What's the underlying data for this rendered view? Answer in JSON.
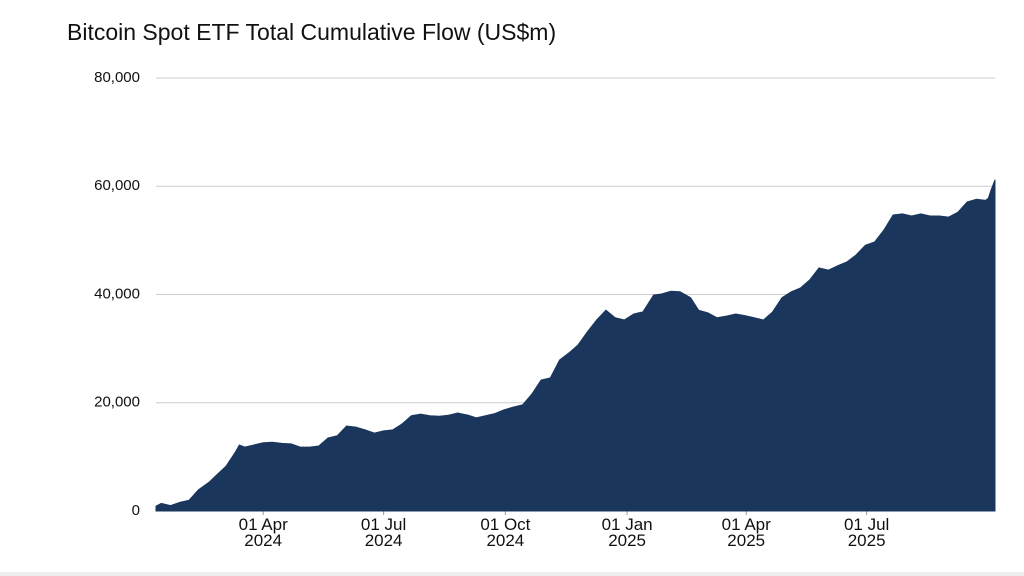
{
  "chart_data": {
    "type": "area",
    "title": "Bitcoin Spot ETF Total Cumulative Flow (US$m)",
    "color": "#1b365d",
    "grid": true,
    "x": [
      "2024-01-11",
      "2024-01-15",
      "2024-01-22",
      "2024-01-29",
      "2024-02-05",
      "2024-02-12",
      "2024-02-20",
      "2024-02-26",
      "2024-03-04",
      "2024-03-11",
      "2024-03-14",
      "2024-03-18",
      "2024-03-25",
      "2024-04-01",
      "2024-04-08",
      "2024-04-15",
      "2024-04-22",
      "2024-04-29",
      "2024-05-06",
      "2024-05-13",
      "2024-05-20",
      "2024-05-27",
      "2024-06-03",
      "2024-06-10",
      "2024-06-17",
      "2024-06-24",
      "2024-07-01",
      "2024-07-08",
      "2024-07-15",
      "2024-07-22",
      "2024-07-29",
      "2024-08-05",
      "2024-08-12",
      "2024-08-19",
      "2024-08-26",
      "2024-09-03",
      "2024-09-09",
      "2024-09-16",
      "2024-09-23",
      "2024-09-30",
      "2024-10-07",
      "2024-10-14",
      "2024-10-21",
      "2024-10-28",
      "2024-11-04",
      "2024-11-11",
      "2024-11-18",
      "2024-11-25",
      "2024-12-02",
      "2024-12-09",
      "2024-12-16",
      "2024-12-23",
      "2024-12-30",
      "2025-01-06",
      "2025-01-13",
      "2025-01-21",
      "2025-01-27",
      "2025-02-03",
      "2025-02-10",
      "2025-02-18",
      "2025-02-24",
      "2025-03-03",
      "2025-03-10",
      "2025-03-17",
      "2025-03-24",
      "2025-03-31",
      "2025-04-07",
      "2025-04-14",
      "2025-04-21",
      "2025-04-28",
      "2025-05-05",
      "2025-05-12",
      "2025-05-19",
      "2025-05-26",
      "2025-06-02",
      "2025-06-09",
      "2025-06-16",
      "2025-06-23",
      "2025-06-30",
      "2025-07-07",
      "2025-07-14",
      "2025-07-21",
      "2025-07-28",
      "2025-08-04",
      "2025-08-11",
      "2025-08-18",
      "2025-08-25",
      "2025-09-01",
      "2025-09-08",
      "2025-09-15",
      "2025-09-22",
      "2025-09-29",
      "2025-10-01",
      "2025-10-03",
      "2025-10-06"
    ],
    "values": [
      900,
      1400,
      1000,
      1600,
      2000,
      3900,
      5300,
      6700,
      8300,
      10900,
      12200,
      11800,
      12200,
      12600,
      12700,
      12500,
      12400,
      11800,
      11800,
      12000,
      13500,
      13900,
      15700,
      15500,
      15000,
      14400,
      14800,
      15000,
      16100,
      17600,
      17900,
      17600,
      17500,
      17700,
      18100,
      17700,
      17200,
      17600,
      18000,
      18700,
      19200,
      19600,
      21600,
      24200,
      24600,
      27900,
      29200,
      30700,
      33100,
      35300,
      37100,
      35700,
      35300,
      36400,
      36800,
      39900,
      40100,
      40600,
      40500,
      39400,
      37100,
      36600,
      35700,
      36000,
      36400,
      36100,
      35700,
      35300,
      36800,
      39400,
      40500,
      41200,
      42700,
      44900,
      44500,
      45300,
      46000,
      47300,
      49100,
      49700,
      51900,
      54700,
      54900,
      54500,
      54900,
      54500,
      54500,
      54300,
      55200,
      57100,
      57600,
      57400,
      57800,
      59300,
      61200
    ],
    "xlim": [
      "2024-01-11",
      "2025-10-06"
    ],
    "xticks": [
      {
        "value": "2024-04-01",
        "label": "01 Apr 2024"
      },
      {
        "value": "2024-07-01",
        "label": "01 Jul 2024"
      },
      {
        "value": "2024-10-01",
        "label": "01 Oct 2024"
      },
      {
        "value": "2025-01-01",
        "label": "01 Jan 2025"
      },
      {
        "value": "2025-04-01",
        "label": "01 Apr 2025"
      },
      {
        "value": "2025-07-01",
        "label": "01 Jul 2025"
      }
    ],
    "ylim": [
      0,
      80000
    ],
    "yticks": [
      0,
      {
        "value": 20000,
        "label": "20,000"
      },
      {
        "value": 40000,
        "label": "40,000"
      },
      {
        "value": 60000,
        "label": "60,000"
      },
      {
        "value": 80000,
        "label": "80,000"
      }
    ]
  }
}
